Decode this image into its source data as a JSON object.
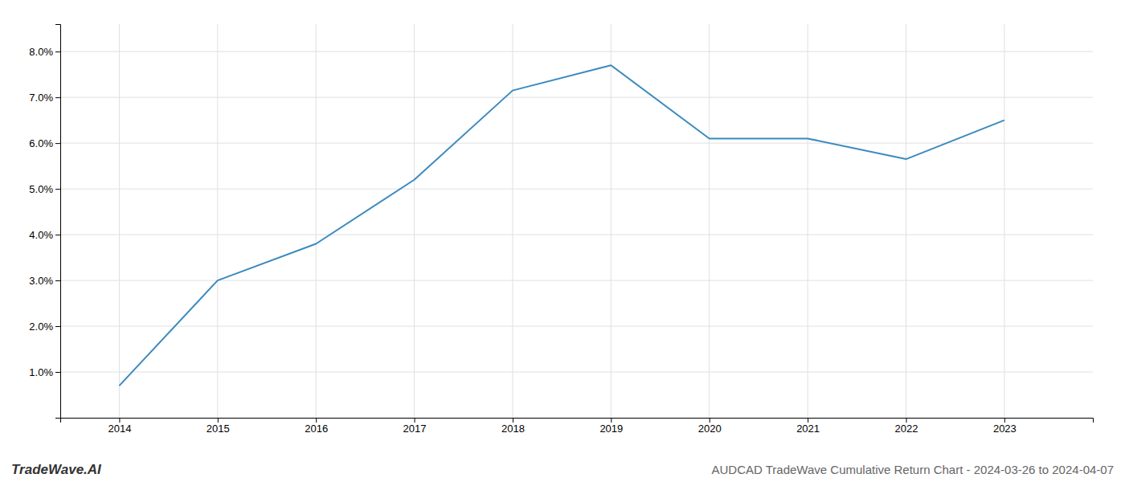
{
  "chart_data": {
    "type": "line",
    "title": "AUDCAD TradeWave Cumulative Return Chart - 2024-03-26 to 2024-04-07",
    "annotations": [
      "TradeWave.AI"
    ],
    "x": [
      2014,
      2015,
      2016,
      2017,
      2018,
      2019,
      2020,
      2021,
      2022,
      2023
    ],
    "values": [
      0.007,
      0.03,
      0.038,
      0.052,
      0.0715,
      0.077,
      0.061,
      0.061,
      0.0565,
      0.065
    ],
    "color": "#3a8abf",
    "xlim": [
      2013.4,
      2023.9
    ],
    "xticks": [
      2014,
      2015,
      2016,
      2017,
      2018,
      2019,
      2020,
      2021,
      2022,
      2023
    ],
    "ylim": [
      0.0,
      0.086
    ],
    "yticks": [
      {
        "value": 0.01,
        "label": "1.0%"
      },
      {
        "value": 0.02,
        "label": "2.0%"
      },
      {
        "value": 0.03,
        "label": "3.0%"
      },
      {
        "value": 0.04,
        "label": "4.0%"
      },
      {
        "value": 0.05,
        "label": "5.0%"
      },
      {
        "value": 0.06,
        "label": "6.0%"
      },
      {
        "value": 0.07,
        "label": "7.0%"
      },
      {
        "value": 0.08,
        "label": "8.0%"
      }
    ],
    "grid": true
  }
}
